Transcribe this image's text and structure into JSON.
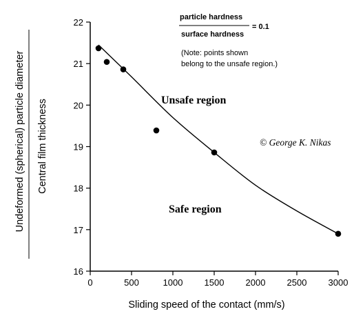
{
  "chart_data": {
    "type": "scatter",
    "xlabel": "Sliding speed of the contact (mm/s)",
    "ylabel_numerator": "Undeformed (spherical) particle diameter",
    "ylabel_denominator": "Central film thickness",
    "xlim": [
      0,
      3000
    ],
    "ylim": [
      16,
      22
    ],
    "x_ticks": [
      0,
      500,
      1000,
      1500,
      2000,
      2500,
      3000
    ],
    "y_ticks": [
      16,
      17,
      18,
      19,
      20,
      21,
      22
    ],
    "grid": false,
    "points": [
      {
        "x": 100,
        "y": 21.37
      },
      {
        "x": 200,
        "y": 21.04
      },
      {
        "x": 400,
        "y": 20.86
      },
      {
        "x": 800,
        "y": 19.39
      },
      {
        "x": 1500,
        "y": 18.86
      },
      {
        "x": 3000,
        "y": 16.9
      }
    ],
    "curve": [
      {
        "x": 100,
        "y": 21.45
      },
      {
        "x": 500,
        "y": 20.68
      },
      {
        "x": 1000,
        "y": 19.7
      },
      {
        "x": 1500,
        "y": 18.86
      },
      {
        "x": 2000,
        "y": 18.07
      },
      {
        "x": 2500,
        "y": 17.45
      },
      {
        "x": 3000,
        "y": 16.9
      }
    ],
    "annotations": {
      "ratio_numerator": "particle hardness",
      "ratio_denominator": "surface hardness",
      "ratio_value": "= 0.1",
      "note_line1": "(Note: points shown",
      "note_line2": "belong to the unsafe region.)",
      "unsafe_label": "Unsafe region",
      "safe_label": "Safe region",
      "copyright": "© George K. Nikas"
    }
  }
}
